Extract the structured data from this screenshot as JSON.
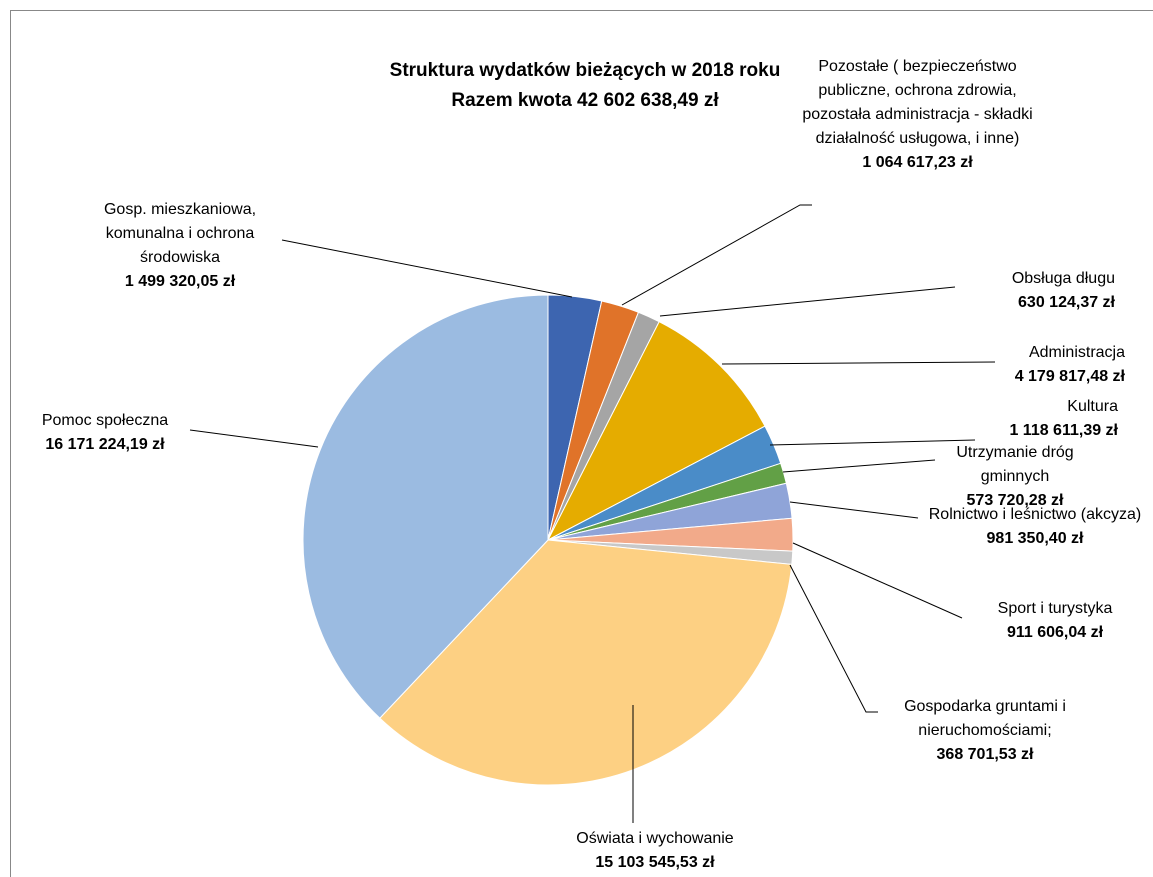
{
  "chart_data": {
    "type": "pie",
    "title": "Struktura wydatków bieżących w 2018 roku",
    "subtitle": "Razem kwota 42 602 638,49 zł",
    "categories": [
      "Gosp. mieszkaniowa, komunalna  i ochrona środowiska",
      "Pozostałe ( bezpieczeństwo publiczne, ochrona zdrowia,  pozostała administracja - składki działalność usługowa, i inne)",
      "Obsługa długu",
      "Administracja",
      "Kultura",
      "Utrzymanie dróg gminnych",
      "Rolnictwo i leśnictwo (akcyza)",
      "Sport i turystyka",
      "Gospodarka gruntami i nieruchomościami;",
      "Oświata i wychowanie",
      "Pomoc społeczna"
    ],
    "values": [
      1499320.05,
      1064617.23,
      630124.37,
      4179817.48,
      1118611.39,
      573720.28,
      981350.4,
      911606.04,
      368701.53,
      15103545.53,
      16171224.19
    ],
    "value_labels": [
      "1 499 320,05 zł",
      "1 064 617,23 zł",
      "630 124,37 zł",
      "4 179 817,48 zł",
      "1 118 611,39 zł",
      "573 720,28 zł",
      "981 350,40 zł",
      "911 606,04 zł",
      "368 701,53 zł",
      "15 103 545,53 zł",
      "16 171 224,19 zł"
    ],
    "colors": [
      "#3d65b0",
      "#e07329",
      "#a5a5a5",
      "#e5ac00",
      "#4a8cc8",
      "#62a046",
      "#8fa4d8",
      "#f2aa8a",
      "#c8c8c8",
      "#fdd083",
      "#9bbbe1"
    ]
  }
}
